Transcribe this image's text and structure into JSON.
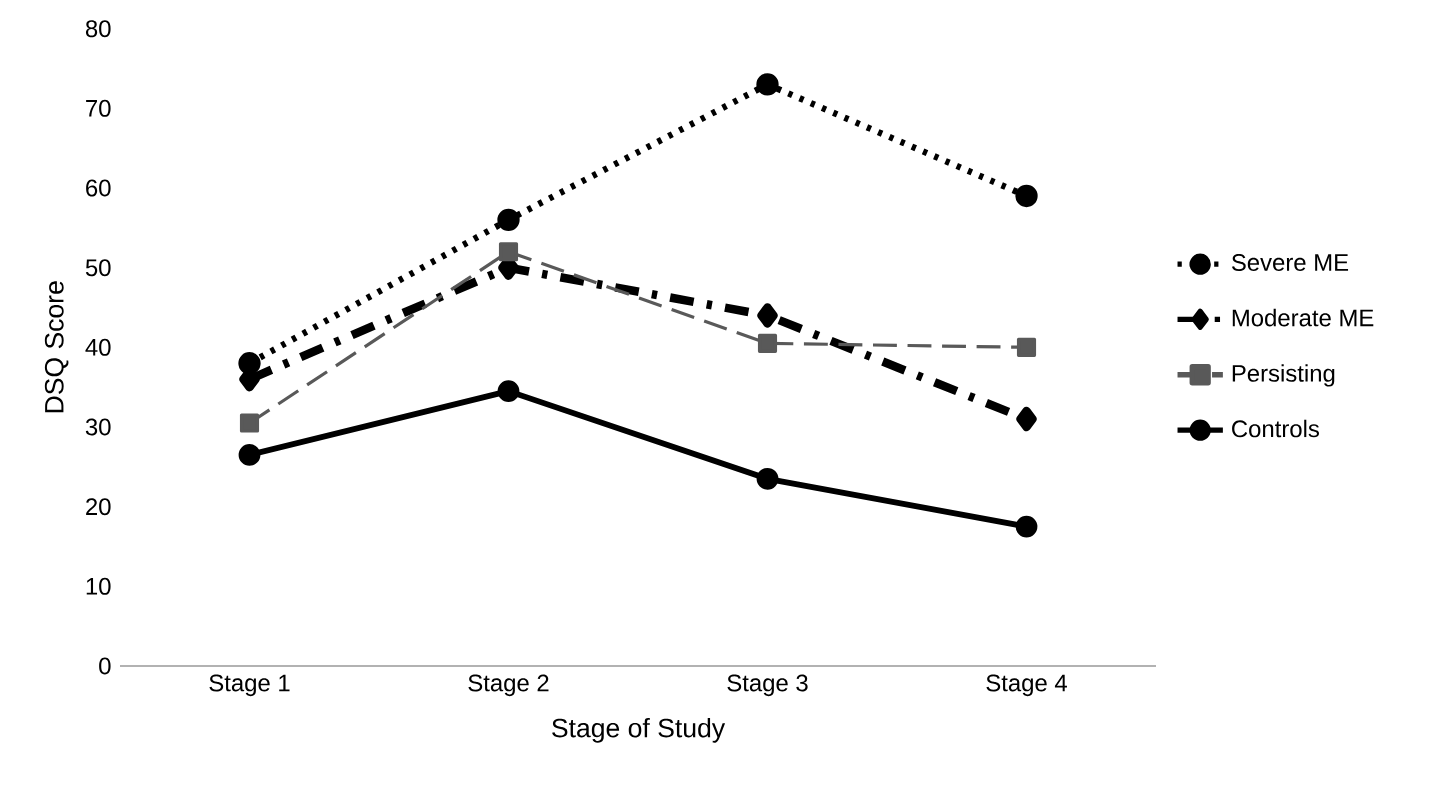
{
  "chart_data": {
    "type": "line",
    "xlabel": "Stage of Study",
    "ylabel": "DSQ Score",
    "categories": [
      "Stage 1",
      "Stage 2",
      "Stage 3",
      "Stage 4"
    ],
    "series": [
      {
        "name": "Severe ME",
        "color": "#000000",
        "values": [
          38,
          56,
          73,
          59
        ],
        "marker": "circle",
        "line_style": "dotted"
      },
      {
        "name": "Moderate ME",
        "color": "#000000",
        "values": [
          36,
          50,
          44,
          31
        ],
        "marker": "diamond",
        "line_style": "dashdot"
      },
      {
        "name": "Persisting",
        "color": "#595959",
        "values": [
          30.5,
          52,
          40.5,
          40
        ],
        "marker": "square",
        "line_style": "dashed"
      },
      {
        "name": "Controls",
        "color": "#000000",
        "values": [
          26.5,
          34.5,
          23.5,
          17.5
        ],
        "marker": "circle",
        "line_style": "solid"
      }
    ],
    "ylim": [
      0,
      80
    ],
    "yticks": [
      0,
      10,
      20,
      30,
      40,
      50,
      60,
      70,
      80
    ],
    "grid": false,
    "legend": "right"
  }
}
